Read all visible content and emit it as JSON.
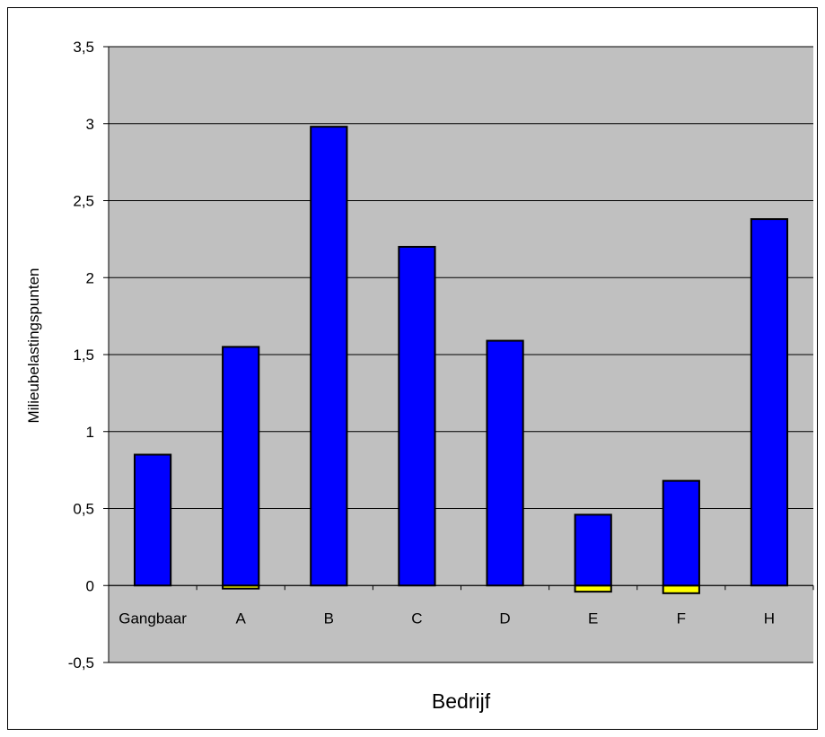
{
  "chart_data": {
    "type": "bar",
    "title": "",
    "xlabel": "Bedrijf",
    "ylabel": "Milieubelastingspunten",
    "categories": [
      "Gangbaar",
      "A",
      "B",
      "C",
      "D",
      "E",
      "F",
      "H"
    ],
    "series": [
      {
        "values": [
          0.85,
          1.55,
          2.98,
          2.2,
          1.59,
          0.46,
          0.68,
          2.38
        ]
      },
      {
        "values": [
          0,
          -0.02,
          0,
          0,
          0,
          -0.04,
          -0.05,
          0
        ]
      }
    ],
    "ylim": [
      -0.5,
      3.5
    ],
    "yticks": [
      "-0,5",
      "0",
      "0,5",
      "1",
      "1,5",
      "2",
      "2,5",
      "3",
      "3,5"
    ],
    "grid": true,
    "legend": "none"
  },
  "colors": {
    "plot_background": "#c0c0c0",
    "positive_bar": "#0000ff",
    "negative_bar": "#ffff00",
    "gridline": "#000000",
    "bar_outline": "#000000"
  }
}
